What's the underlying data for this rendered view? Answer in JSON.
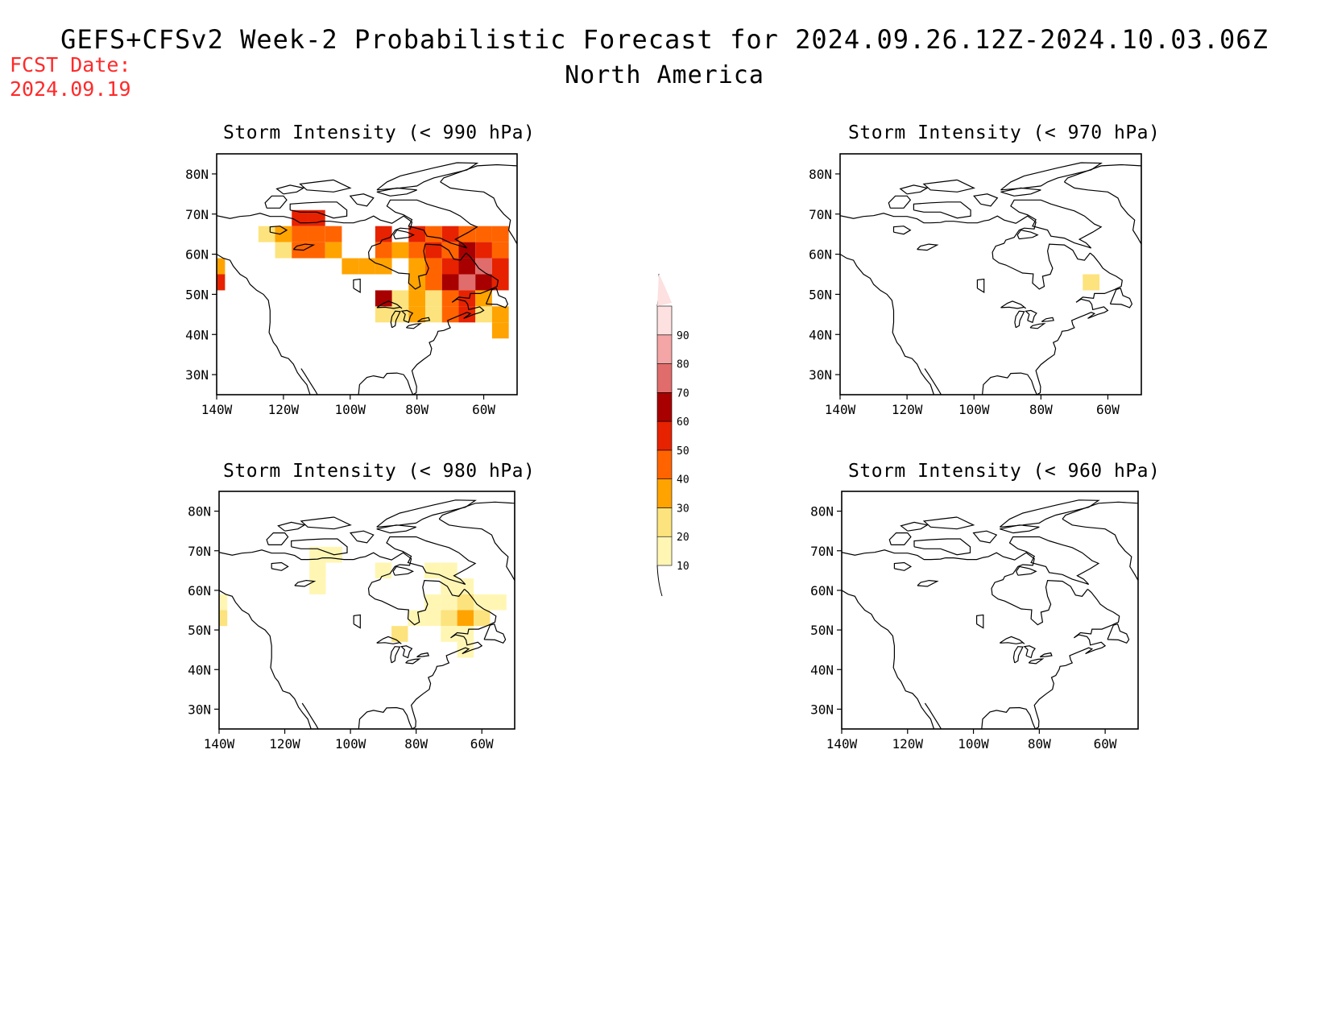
{
  "header": {
    "fcst_label": "FCST Date:",
    "fcst_date": "2024.09.19",
    "title": "GEFS+CFSv2 Week-2 Probabilistic Forecast for 2024.09.26.12Z-2024.10.03.06Z",
    "subtitle": "North America"
  },
  "panels": [
    {
      "id": "p990",
      "title": "Storm Intensity (< 990 hPa)"
    },
    {
      "id": "p970",
      "title": "Storm Intensity (< 970 hPa)"
    },
    {
      "id": "p980",
      "title": "Storm Intensity (< 980 hPa)"
    },
    {
      "id": "p960",
      "title": "Storm Intensity (< 960 hPa)"
    }
  ],
  "axes": {
    "lat_labels": [
      "80N",
      "70N",
      "60N",
      "50N",
      "40N",
      "30N"
    ],
    "lat_values": [
      80,
      70,
      60,
      50,
      40,
      30
    ],
    "lon_labels": [
      "140W",
      "120W",
      "100W",
      "80W",
      "60W"
    ],
    "lon_values": [
      -140,
      -120,
      -100,
      -80,
      -60
    ],
    "lon_range": [
      -140,
      -50
    ],
    "lat_range": [
      25,
      85
    ]
  },
  "colorbar": {
    "levels": [
      "10",
      "20",
      "30",
      "40",
      "50",
      "60",
      "70",
      "80",
      "90"
    ],
    "colors": [
      "#fff6b4",
      "#fde37d",
      "#ffa300",
      "#ff6400",
      "#e62200",
      "#a80000",
      "#e06c6c",
      "#f4a5a5",
      "#fde0e0"
    ]
  },
  "map_data": {
    "units": "probability (%)",
    "cell_deg": [
      5,
      4
    ],
    "p990": [
      [
        -140,
        53,
        "#e62200"
      ],
      [
        -140,
        57,
        "#ffa300"
      ],
      [
        -125,
        65,
        "#fde37d"
      ],
      [
        -120,
        65,
        "#ffa300"
      ],
      [
        -115,
        65,
        "#ff6400"
      ],
      [
        -110,
        65,
        "#ff6400"
      ],
      [
        -105,
        65,
        "#ff6400"
      ],
      [
        -120,
        61,
        "#fde37d"
      ],
      [
        -115,
        61,
        "#ff6400"
      ],
      [
        -110,
        61,
        "#ff6400"
      ],
      [
        -105,
        61,
        "#ffa300"
      ],
      [
        -115,
        69,
        "#e62200"
      ],
      [
        -110,
        69,
        "#e62200"
      ],
      [
        -100,
        57,
        "#ffa300"
      ],
      [
        -95,
        57,
        "#ffa300"
      ],
      [
        -90,
        65,
        "#e62200"
      ],
      [
        -90,
        61,
        "#ff6400"
      ],
      [
        -85,
        61,
        "#ffa300"
      ],
      [
        -90,
        57,
        "#ffa300"
      ],
      [
        -80,
        65,
        "#e62200"
      ],
      [
        -75,
        65,
        "#ff6400"
      ],
      [
        -70,
        65,
        "#e62200"
      ],
      [
        -65,
        65,
        "#ff6400"
      ],
      [
        -60,
        65,
        "#ff6400"
      ],
      [
        -55,
        65,
        "#ff6400"
      ],
      [
        -80,
        61,
        "#ff6400"
      ],
      [
        -75,
        61,
        "#e62200"
      ],
      [
        -70,
        61,
        "#ff6400"
      ],
      [
        -65,
        61,
        "#a80000"
      ],
      [
        -60,
        61,
        "#e62200"
      ],
      [
        -55,
        61,
        "#ff6400"
      ],
      [
        -80,
        57,
        "#ffa300"
      ],
      [
        -75,
        57,
        "#ff6400"
      ],
      [
        -70,
        57,
        "#e62200"
      ],
      [
        -65,
        57,
        "#a80000"
      ],
      [
        -60,
        57,
        "#e06c6c"
      ],
      [
        -55,
        57,
        "#e62200"
      ],
      [
        -80,
        53,
        "#ffa300"
      ],
      [
        -75,
        53,
        "#ff6400"
      ],
      [
        -70,
        53,
        "#a80000"
      ],
      [
        -65,
        53,
        "#e06c6c"
      ],
      [
        -60,
        53,
        "#a80000"
      ],
      [
        -55,
        53,
        "#e62200"
      ],
      [
        -85,
        49,
        "#fde37d"
      ],
      [
        -80,
        49,
        "#ffa300"
      ],
      [
        -75,
        49,
        "#fde37d"
      ],
      [
        -70,
        49,
        "#ff6400"
      ],
      [
        -65,
        49,
        "#e62200"
      ],
      [
        -60,
        49,
        "#ffa300"
      ],
      [
        -90,
        45,
        "#fde37d"
      ],
      [
        -85,
        45,
        "#fde37d"
      ],
      [
        -80,
        45,
        "#ffa300"
      ],
      [
        -75,
        45,
        "#fde37d"
      ],
      [
        -70,
        45,
        "#ff6400"
      ],
      [
        -65,
        45,
        "#e62200"
      ],
      [
        -60,
        45,
        "#fde37d"
      ],
      [
        -90,
        49,
        "#a80000"
      ],
      [
        -55,
        41,
        "#ffa300"
      ],
      [
        -55,
        45,
        "#ffa300"
      ]
    ],
    "p980": [
      [
        -140,
        53,
        "#fde37d"
      ],
      [
        -140,
        57,
        "#fff6b4"
      ],
      [
        -110,
        69,
        "#fff6b4"
      ],
      [
        -105,
        69,
        "#fff6b4"
      ],
      [
        -110,
        65,
        "#fff6b4"
      ],
      [
        -90,
        65,
        "#fff6b4"
      ],
      [
        -110,
        61,
        "#fff6b4"
      ],
      [
        -75,
        65,
        "#fff6b4"
      ],
      [
        -70,
        65,
        "#fff6b4"
      ],
      [
        -70,
        61,
        "#fff6b4"
      ],
      [
        -65,
        61,
        "#fff6b4"
      ],
      [
        -75,
        57,
        "#fff6b4"
      ],
      [
        -70,
        57,
        "#fff6b4"
      ],
      [
        -65,
        57,
        "#fde37d"
      ],
      [
        -60,
        57,
        "#fff6b4"
      ],
      [
        -55,
        57,
        "#fff6b4"
      ],
      [
        -75,
        53,
        "#fff6b4"
      ],
      [
        -70,
        53,
        "#fde37d"
      ],
      [
        -65,
        53,
        "#ffa300"
      ],
      [
        -60,
        53,
        "#fde37d"
      ],
      [
        -70,
        49,
        "#fff6b4"
      ],
      [
        -65,
        49,
        "#fff6b4"
      ],
      [
        -80,
        53,
        "#fff6b4"
      ],
      [
        -85,
        49,
        "#fde37d"
      ],
      [
        -65,
        45,
        "#fff6b4"
      ]
    ],
    "p970": [
      [
        -65,
        53,
        "#fde37d"
      ]
    ],
    "p960": []
  }
}
